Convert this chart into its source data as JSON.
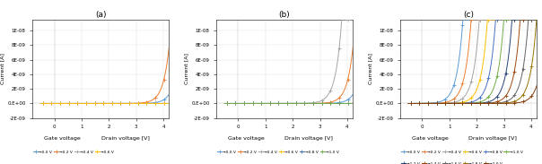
{
  "title_a": "(a)",
  "title_b": "(b)",
  "title_c": "(c)",
  "xlabel_left": "Gate voltage",
  "xlabel_right": "Drain voltage [V]",
  "ylabel": "Current [A]",
  "xlim": [
    -0.8,
    4.2
  ],
  "ylim": [
    -2e-09,
    1.15e-08
  ],
  "yticks": [
    -2e-09,
    0,
    2e-09,
    4e-09,
    6e-09,
    8e-09,
    1e-08
  ],
  "ytick_labels": [
    "-2E-09",
    "0.E+00",
    "2E-09",
    "4E-09",
    "6E-09",
    "8E-09",
    "1E-08"
  ],
  "xticks": [
    0,
    1,
    2,
    3,
    4
  ],
  "panel_a_vg": [
    0.0,
    0.2,
    0.4,
    0.6
  ],
  "panel_b_vg": [
    0.0,
    0.2,
    0.4,
    0.6,
    0.8,
    1.0
  ],
  "panel_c_vg": [
    0.0,
    0.2,
    0.4,
    0.6,
    0.8,
    1.0,
    1.2,
    1.4,
    1.6,
    1.8,
    2.0
  ],
  "colors_a": [
    "#5B9BD5",
    "#ED7D31",
    "#A5A5A5",
    "#FFC000"
  ],
  "colors_b": [
    "#5B9BD5",
    "#ED7D31",
    "#A5A5A5",
    "#FFC000",
    "#4472C4",
    "#70AD47"
  ],
  "colors_c": [
    "#5B9BD5",
    "#ED7D31",
    "#A5A5A5",
    "#FFC000",
    "#4472C4",
    "#70AD47",
    "#264478",
    "#9E480E",
    "#636363",
    "#997300",
    "#843C0C"
  ],
  "vt_a": [
    3.5,
    3.1,
    8.0,
    8.0
  ],
  "vt_b": [
    3.5,
    3.1,
    2.6,
    8.0,
    8.0,
    8.0
  ],
  "vt_c": [
    0.3,
    0.6,
    0.9,
    1.2,
    1.5,
    1.8,
    2.1,
    2.4,
    2.7,
    3.0,
    3.35
  ],
  "n_factor": 0.22,
  "scale": 5e-11,
  "background_color": "#FFFFFF",
  "figsize": [
    6.04,
    1.83
  ],
  "dpi": 100
}
